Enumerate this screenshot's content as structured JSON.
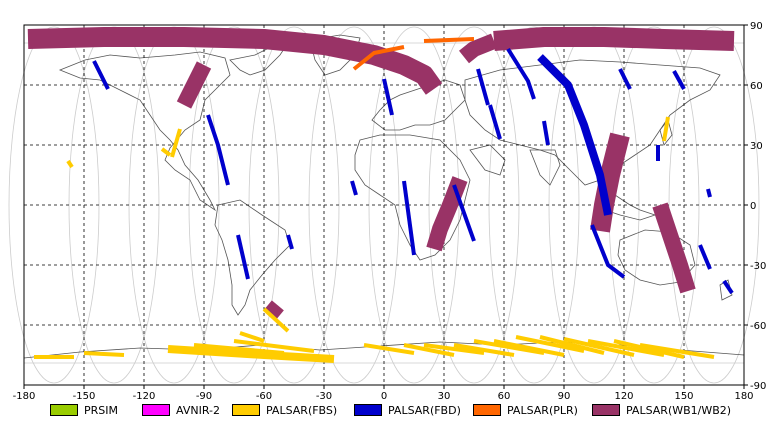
{
  "chart_data": {
    "type": "map",
    "projection": "equirectangular",
    "xlim": [
      -180,
      180
    ],
    "ylim": [
      -90,
      90
    ],
    "x_ticks": [
      -180,
      -150,
      -120,
      -90,
      -60,
      -30,
      0,
      30,
      60,
      90,
      120,
      150,
      180
    ],
    "y_ticks": [
      90,
      60,
      30,
      0,
      -30,
      -60,
      -90
    ],
    "grid": true,
    "grid_style": "dashed",
    "legend": [
      {
        "name": "PRSIM",
        "color": "#99cc00"
      },
      {
        "name": "AVNIR-2",
        "color": "#ff00ff"
      },
      {
        "name": "PALSAR(FBS)",
        "color": "#ffcc00"
      },
      {
        "name": "PALSAR(FBD)",
        "color": "#0000cc"
      },
      {
        "name": "PALSAR(PLR)",
        "color": "#ff6600"
      },
      {
        "name": "PALSAR(WB1/WB2)",
        "color": "#993366"
      }
    ],
    "legend_position": "bottom",
    "swaths": [
      {
        "sensor": "PALSAR(WB1/WB2)",
        "path": [
          [
            -178,
            83
          ],
          [
            -140,
            84
          ],
          [
            -100,
            84
          ],
          [
            -60,
            83
          ],
          [
            -30,
            80
          ],
          [
            -5,
            75
          ],
          [
            10,
            70
          ],
          [
            20,
            65
          ],
          [
            25,
            58
          ]
        ],
        "width": 5
      },
      {
        "sensor": "PALSAR(WB1/WB2)",
        "path": [
          [
            -90,
            70
          ],
          [
            -95,
            60
          ],
          [
            -100,
            50
          ]
        ],
        "width": 4
      },
      {
        "sensor": "PALSAR(WB1/WB2)",
        "path": [
          [
            55,
            82
          ],
          [
            80,
            84
          ],
          [
            110,
            84
          ],
          [
            140,
            83
          ],
          [
            175,
            82
          ]
        ],
        "width": 5
      },
      {
        "sensor": "PALSAR(WB1/WB2)",
        "path": [
          [
            55,
            82
          ],
          [
            45,
            78
          ],
          [
            40,
            74
          ]
        ],
        "width": 4
      },
      {
        "sensor": "PALSAR(WB1/WB2)",
        "path": [
          [
            38,
            13
          ],
          [
            33,
            0
          ],
          [
            28,
            -12
          ],
          [
            25,
            -22
          ]
        ],
        "width": 4
      },
      {
        "sensor": "PALSAR(WB1/WB2)",
        "path": [
          [
            118,
            35
          ],
          [
            113,
            15
          ],
          [
            110,
            0
          ],
          [
            108,
            -13
          ]
        ],
        "width": 5
      },
      {
        "sensor": "PALSAR(WB1/WB2)",
        "path": [
          [
            138,
            0
          ],
          [
            143,
            -15
          ],
          [
            148,
            -30
          ],
          [
            152,
            -43
          ]
        ],
        "width": 4
      },
      {
        "sensor": "PALSAR(WB1/WB2)",
        "path": [
          [
            -58,
            -50
          ],
          [
            -52,
            -55
          ]
        ],
        "width": 3
      },
      {
        "sensor": "PALSAR(PLR)",
        "path": [
          [
            -15,
            68
          ],
          [
            -5,
            76
          ],
          [
            10,
            79
          ]
        ],
        "width": 1
      },
      {
        "sensor": "PALSAR(PLR)",
        "path": [
          [
            20,
            82
          ],
          [
            45,
            83
          ]
        ],
        "width": 1
      },
      {
        "sensor": "PALSAR(FBD)",
        "path": [
          [
            -145,
            72
          ],
          [
            -138,
            58
          ]
        ],
        "width": 1
      },
      {
        "sensor": "PALSAR(FBD)",
        "path": [
          [
            -88,
            45
          ],
          [
            -83,
            30
          ],
          [
            -78,
            10
          ]
        ],
        "width": 1
      },
      {
        "sensor": "PALSAR(FBD)",
        "path": [
          [
            -48,
            -15
          ],
          [
            -46,
            -22
          ]
        ],
        "width": 1
      },
      {
        "sensor": "PALSAR(FBD)",
        "path": [
          [
            -73,
            -15
          ],
          [
            -68,
            -37
          ]
        ],
        "width": 1
      },
      {
        "sensor": "PALSAR(FBD)",
        "path": [
          [
            0,
            63
          ],
          [
            4,
            45
          ]
        ],
        "width": 1
      },
      {
        "sensor": "PALSAR(FBD)",
        "path": [
          [
            -16,
            12
          ],
          [
            -14,
            5
          ]
        ],
        "width": 1
      },
      {
        "sensor": "PALSAR(FBD)",
        "path": [
          [
            10,
            12
          ],
          [
            15,
            -25
          ]
        ],
        "width": 1
      },
      {
        "sensor": "PALSAR(FBD)",
        "path": [
          [
            35,
            10
          ],
          [
            45,
            -18
          ]
        ],
        "width": 1
      },
      {
        "sensor": "PALSAR(FBD)",
        "path": [
          [
            47,
            68
          ],
          [
            52,
            50
          ]
        ],
        "width": 1
      },
      {
        "sensor": "PALSAR(FBD)",
        "path": [
          [
            53,
            50
          ],
          [
            58,
            33
          ]
        ],
        "width": 1
      },
      {
        "sensor": "PALSAR(FBD)",
        "path": [
          [
            62,
            78
          ],
          [
            72,
            62
          ],
          [
            75,
            53
          ]
        ],
        "width": 1
      },
      {
        "sensor": "PALSAR(FBD)",
        "path": [
          [
            78,
            74
          ],
          [
            92,
            60
          ],
          [
            100,
            40
          ],
          [
            108,
            15
          ],
          [
            112,
            -5
          ]
        ],
        "width": 2
      },
      {
        "sensor": "PALSAR(FBD)",
        "path": [
          [
            104,
            -10
          ],
          [
            112,
            -30
          ],
          [
            120,
            -36
          ]
        ],
        "width": 1
      },
      {
        "sensor": "PALSAR(FBD)",
        "path": [
          [
            80,
            42
          ],
          [
            82,
            30
          ]
        ],
        "width": 1
      },
      {
        "sensor": "PALSAR(FBD)",
        "path": [
          [
            118,
            68
          ],
          [
            123,
            58
          ]
        ],
        "width": 1
      },
      {
        "sensor": "PALSAR(FBD)",
        "path": [
          [
            145,
            67
          ],
          [
            150,
            58
          ]
        ],
        "width": 1
      },
      {
        "sensor": "PALSAR(FBD)",
        "path": [
          [
            137,
            30
          ],
          [
            137,
            22
          ]
        ],
        "width": 1
      },
      {
        "sensor": "PALSAR(FBD)",
        "path": [
          [
            158,
            -20
          ],
          [
            163,
            -32
          ]
        ],
        "width": 1
      },
      {
        "sensor": "PALSAR(FBD)",
        "path": [
          [
            170,
            -38
          ],
          [
            174,
            -44
          ]
        ],
        "width": 1
      },
      {
        "sensor": "PALSAR(FBD)",
        "path": [
          [
            162,
            8
          ],
          [
            163,
            4
          ]
        ],
        "width": 1
      },
      {
        "sensor": "PALSAR(FBS)",
        "path": [
          [
            -102,
            38
          ],
          [
            -106,
            24
          ]
        ],
        "width": 1
      },
      {
        "sensor": "PALSAR(FBS)",
        "path": [
          [
            -111,
            28
          ],
          [
            -107,
            25
          ]
        ],
        "width": 1
      },
      {
        "sensor": "PALSAR(FBS)",
        "path": [
          [
            -158,
            22
          ],
          [
            -156,
            19
          ]
        ],
        "width": 1
      },
      {
        "sensor": "PALSAR(FBS)",
        "path": [
          [
            142,
            44
          ],
          [
            140,
            32
          ]
        ],
        "width": 1
      },
      {
        "sensor": "PALSAR(FBS)",
        "path": [
          [
            -60,
            -52
          ],
          [
            -48,
            -63
          ]
        ],
        "width": 1
      },
      {
        "sensor": "PALSAR(FBS)",
        "path": [
          [
            -72,
            -64
          ],
          [
            -60,
            -68
          ]
        ],
        "width": 1
      },
      {
        "sensor": "PALSAR(FBS)",
        "path": [
          [
            -175,
            -76
          ],
          [
            -155,
            -76
          ]
        ],
        "width": 1
      },
      {
        "sensor": "PALSAR(FBS)",
        "path": [
          [
            -150,
            -74
          ],
          [
            -130,
            -75
          ]
        ],
        "width": 1
      },
      {
        "sensor": "PALSAR(FBS)",
        "path": [
          [
            -108,
            -72
          ],
          [
            -60,
            -75
          ],
          [
            -25,
            -77
          ]
        ],
        "width": 2
      },
      {
        "sensor": "PALSAR(FBS)",
        "path": [
          [
            -95,
            -70
          ],
          [
            -50,
            -74
          ]
        ],
        "width": 1
      },
      {
        "sensor": "PALSAR(FBS)",
        "path": [
          [
            -75,
            -68
          ],
          [
            -35,
            -73
          ]
        ],
        "width": 1
      },
      {
        "sensor": "PALSAR(FBS)",
        "path": [
          [
            -10,
            -70
          ],
          [
            15,
            -74
          ]
        ],
        "width": 1
      },
      {
        "sensor": "PALSAR(FBS)",
        "path": [
          [
            10,
            -70
          ],
          [
            35,
            -75
          ]
        ],
        "width": 1
      },
      {
        "sensor": "PALSAR(FBS)",
        "path": [
          [
            20,
            -70
          ],
          [
            50,
            -74
          ]
        ],
        "width": 1
      },
      {
        "sensor": "PALSAR(FBS)",
        "path": [
          [
            35,
            -70
          ],
          [
            65,
            -75
          ]
        ],
        "width": 1
      },
      {
        "sensor": "PALSAR(FBS)",
        "path": [
          [
            45,
            -68
          ],
          [
            80,
            -74
          ]
        ],
        "width": 1
      },
      {
        "sensor": "PALSAR(FBS)",
        "path": [
          [
            55,
            -68
          ],
          [
            90,
            -75
          ]
        ],
        "width": 1
      },
      {
        "sensor": "PALSAR(FBS)",
        "path": [
          [
            66,
            -66
          ],
          [
            100,
            -73
          ]
        ],
        "width": 1
      },
      {
        "sensor": "PALSAR(FBS)",
        "path": [
          [
            78,
            -66
          ],
          [
            110,
            -74
          ]
        ],
        "width": 1
      },
      {
        "sensor": "PALSAR(FBS)",
        "path": [
          [
            90,
            -67
          ],
          [
            125,
            -75
          ]
        ],
        "width": 1
      },
      {
        "sensor": "PALSAR(FBS)",
        "path": [
          [
            102,
            -68
          ],
          [
            140,
            -75
          ]
        ],
        "width": 1
      },
      {
        "sensor": "PALSAR(FBS)",
        "path": [
          [
            115,
            -68
          ],
          [
            150,
            -76
          ]
        ],
        "width": 1
      },
      {
        "sensor": "PALSAR(FBS)",
        "path": [
          [
            128,
            -70
          ],
          [
            165,
            -76
          ]
        ],
        "width": 1
      }
    ]
  }
}
